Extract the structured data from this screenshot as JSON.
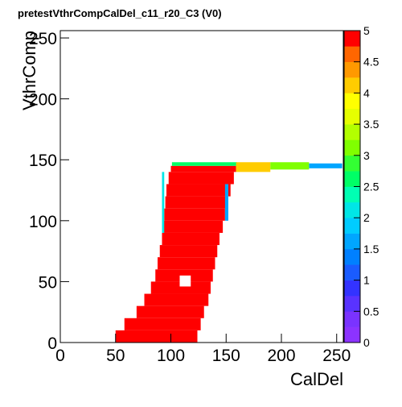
{
  "chart_data": {
    "type": "heatmap",
    "title": "pretestVthrCompCalDel_c11_r20_C3 (V0)",
    "x_label": "CalDel",
    "y_label": "VthrComp",
    "xlim": [
      0,
      256
    ],
    "ylim": [
      0,
      256
    ],
    "xticks": [
      0,
      50,
      100,
      150,
      200,
      250
    ],
    "yticks": [
      0,
      50,
      100,
      150,
      200,
      250
    ],
    "zlim": [
      0,
      5
    ],
    "zticks": [
      0,
      0.5,
      1,
      1.5,
      2,
      2.5,
      3,
      3.5,
      4,
      4.5,
      5
    ],
    "palette": [
      "#8c33ff",
      "#7a33ff",
      "#5933ff",
      "#3333ff",
      "#1a5cff",
      "#0080ff",
      "#00a6ff",
      "#00ccff",
      "#00e6e6",
      "#00ffb3",
      "#00ff66",
      "#33ff33",
      "#80ff00",
      "#b3ff00",
      "#e6ff00",
      "#ffff00",
      "#ffcc00",
      "#ff9900",
      "#ff6600",
      "#ff0000"
    ],
    "cells": [
      {
        "x": [
          50,
          124
        ],
        "y": [
          0,
          10
        ],
        "value": 5
      },
      {
        "x": [
          58,
          127
        ],
        "y": [
          10,
          20
        ],
        "value": 5
      },
      {
        "x": [
          69,
          130
        ],
        "y": [
          20,
          30
        ],
        "value": 5
      },
      {
        "x": [
          76,
          134
        ],
        "y": [
          30,
          40
        ],
        "value": 5
      },
      {
        "x": [
          82,
          136
        ],
        "y": [
          40,
          50
        ],
        "value": 5
      },
      {
        "x": [
          86,
          138
        ],
        "y": [
          50,
          60
        ],
        "value": 5
      },
      {
        "x": [
          88,
          140
        ],
        "y": [
          60,
          70
        ],
        "value": 5
      },
      {
        "x": [
          90,
          142
        ],
        "y": [
          70,
          80
        ],
        "value": 5
      },
      {
        "x": [
          92,
          144
        ],
        "y": [
          80,
          90
        ],
        "value": 5
      },
      {
        "x": [
          93,
          147
        ],
        "y": [
          90,
          100
        ],
        "value": 5
      },
      {
        "x": [
          94,
          149
        ],
        "y": [
          100,
          110
        ],
        "value": 5
      },
      {
        "x": [
          95,
          151
        ],
        "y": [
          110,
          120
        ],
        "value": 5
      },
      {
        "x": [
          96,
          154
        ],
        "y": [
          120,
          130
        ],
        "value": 5
      },
      {
        "x": [
          98,
          157
        ],
        "y": [
          130,
          140
        ],
        "value": 5
      },
      {
        "x": [
          100,
          159
        ],
        "y": [
          140,
          145
        ],
        "value": 5
      },
      {
        "x": [
          101,
          160
        ],
        "y": [
          145,
          148
        ],
        "value": 2.5
      },
      {
        "x": [
          159,
          190
        ],
        "y": [
          140,
          148
        ],
        "value": 4
      },
      {
        "x": [
          190,
          225
        ],
        "y": [
          142,
          148
        ],
        "value": 3
      },
      {
        "x": [
          225,
          255
        ],
        "y": [
          143,
          147
        ],
        "value": 1.5
      },
      {
        "x": [
          92,
          94
        ],
        "y": [
          90,
          140
        ],
        "value": 2
      },
      {
        "x": [
          149,
          152
        ],
        "y": [
          100,
          130
        ],
        "value": 1.5
      },
      {
        "x": [
          108,
          118
        ],
        "y": [
          46,
          55
        ],
        "value": 0
      }
    ]
  }
}
